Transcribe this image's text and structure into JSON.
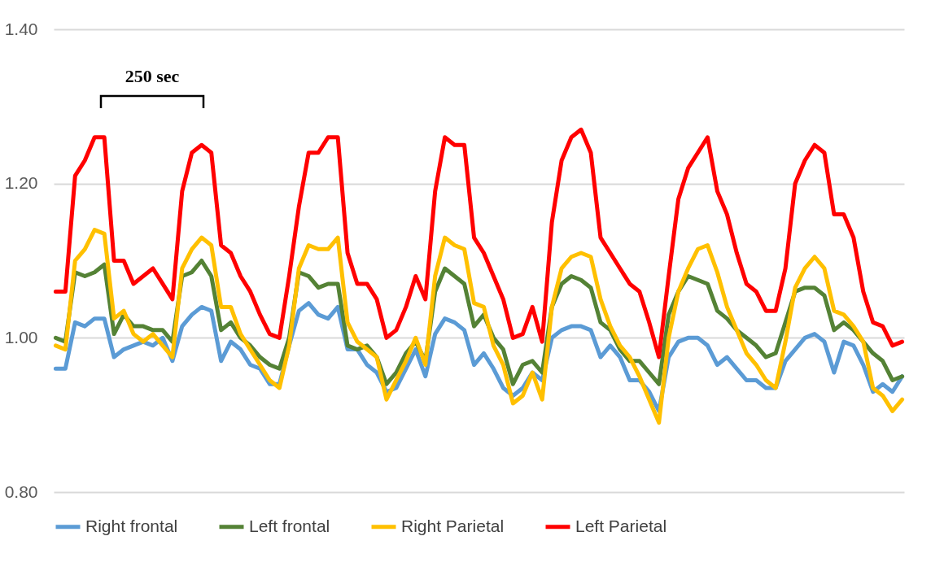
{
  "chart_data": {
    "type": "line",
    "categories": [
      null,
      null,
      null,
      null,
      null,
      null,
      null,
      null,
      null,
      null,
      null,
      null,
      null,
      null,
      null,
      null,
      null,
      null,
      null,
      null,
      null,
      null,
      null,
      null,
      null,
      null,
      null,
      null,
      null,
      null,
      null,
      null,
      null,
      null,
      null,
      null,
      null,
      null,
      null,
      null,
      null,
      null,
      null,
      null,
      null,
      null,
      null,
      null,
      null,
      null,
      null,
      null,
      null,
      null,
      null,
      null,
      null,
      null,
      null,
      null,
      null,
      null,
      null,
      null,
      null,
      null,
      null,
      null,
      null,
      null,
      null,
      null,
      null,
      null,
      null,
      null,
      null,
      null,
      null,
      null,
      null,
      null,
      null,
      null,
      null,
      null,
      null,
      null
    ],
    "series": [
      {
        "name": "Right frontal",
        "color": "#5b9bd5",
        "values": [
          0.96,
          0.96,
          1.02,
          1.015,
          1.025,
          1.025,
          0.975,
          0.985,
          0.99,
          0.995,
          0.99,
          1.0,
          0.97,
          1.015,
          1.03,
          1.04,
          1.035,
          0.97,
          0.995,
          0.985,
          0.965,
          0.96,
          0.94,
          0.94,
          0.99,
          1.035,
          1.045,
          1.03,
          1.025,
          1.04,
          0.985,
          0.985,
          0.965,
          0.955,
          0.93,
          0.935,
          0.96,
          0.985,
          0.95,
          1.005,
          1.025,
          1.02,
          1.01,
          0.965,
          0.98,
          0.96,
          0.935,
          0.925,
          0.935,
          0.955,
          0.945,
          1.0,
          1.01,
          1.015,
          1.015,
          1.01,
          0.975,
          0.99,
          0.975,
          0.945,
          0.945,
          0.93,
          0.905,
          0.975,
          0.995,
          1.0,
          1.0,
          0.99,
          0.965,
          0.975,
          0.96,
          0.945,
          0.945,
          0.935,
          0.935,
          0.97,
          0.985,
          1.0,
          1.005,
          0.995,
          0.955,
          0.995,
          0.99,
          0.965,
          0.93,
          0.94,
          0.93,
          0.95
        ]
      },
      {
        "name": "Left frontal",
        "color": "#548235",
        "values": [
          1.0,
          0.995,
          1.085,
          1.08,
          1.085,
          1.095,
          1.005,
          1.03,
          1.015,
          1.015,
          1.01,
          1.01,
          0.995,
          1.08,
          1.085,
          1.1,
          1.08,
          1.01,
          1.02,
          1.0,
          0.99,
          0.975,
          0.965,
          0.96,
          1.0,
          1.085,
          1.08,
          1.065,
          1.07,
          1.07,
          0.99,
          0.985,
          0.99,
          0.975,
          0.94,
          0.955,
          0.98,
          0.995,
          0.97,
          1.06,
          1.09,
          1.08,
          1.07,
          1.015,
          1.03,
          1.0,
          0.985,
          0.94,
          0.965,
          0.97,
          0.955,
          1.04,
          1.07,
          1.08,
          1.075,
          1.065,
          1.02,
          1.01,
          0.985,
          0.97,
          0.97,
          0.955,
          0.94,
          1.03,
          1.06,
          1.08,
          1.075,
          1.07,
          1.035,
          1.025,
          1.01,
          1.0,
          0.99,
          0.975,
          0.98,
          1.02,
          1.06,
          1.065,
          1.065,
          1.055,
          1.01,
          1.02,
          1.01,
          0.995,
          0.98,
          0.97,
          0.945,
          0.95
        ]
      },
      {
        "name": "Right Parietal",
        "color": "#ffc000",
        "values": [
          0.99,
          0.985,
          1.1,
          1.115,
          1.14,
          1.135,
          1.025,
          1.035,
          1.005,
          0.995,
          1.005,
          0.99,
          0.975,
          1.09,
          1.115,
          1.13,
          1.12,
          1.04,
          1.04,
          1.005,
          0.985,
          0.965,
          0.945,
          0.935,
          0.99,
          1.09,
          1.12,
          1.115,
          1.115,
          1.13,
          1.02,
          0.995,
          0.985,
          0.975,
          0.92,
          0.945,
          0.97,
          1.0,
          0.965,
          1.08,
          1.13,
          1.12,
          1.115,
          1.045,
          1.04,
          0.99,
          0.965,
          0.915,
          0.925,
          0.955,
          0.92,
          1.04,
          1.09,
          1.105,
          1.11,
          1.105,
          1.05,
          1.015,
          0.99,
          0.975,
          0.95,
          0.92,
          0.89,
          1.0,
          1.06,
          1.09,
          1.115,
          1.12,
          1.085,
          1.04,
          1.01,
          0.98,
          0.965,
          0.945,
          0.935,
          0.995,
          1.065,
          1.09,
          1.105,
          1.09,
          1.035,
          1.03,
          1.015,
          0.995,
          0.935,
          0.925,
          0.905,
          0.92
        ]
      },
      {
        "name": "Left Parietal",
        "color": "#ff0000",
        "values": [
          1.06,
          1.06,
          1.21,
          1.23,
          1.26,
          1.26,
          1.1,
          1.1,
          1.07,
          1.08,
          1.09,
          1.07,
          1.05,
          1.19,
          1.24,
          1.25,
          1.24,
          1.12,
          1.11,
          1.08,
          1.06,
          1.03,
          1.005,
          1.0,
          1.08,
          1.17,
          1.24,
          1.24,
          1.26,
          1.26,
          1.11,
          1.07,
          1.07,
          1.05,
          1.0,
          1.01,
          1.04,
          1.08,
          1.05,
          1.19,
          1.26,
          1.25,
          1.25,
          1.13,
          1.11,
          1.08,
          1.05,
          1.0,
          1.005,
          1.04,
          0.995,
          1.15,
          1.23,
          1.26,
          1.27,
          1.24,
          1.13,
          1.11,
          1.09,
          1.07,
          1.06,
          1.02,
          0.975,
          1.08,
          1.18,
          1.22,
          1.24,
          1.26,
          1.19,
          1.16,
          1.11,
          1.07,
          1.06,
          1.035,
          1.035,
          1.09,
          1.2,
          1.23,
          1.25,
          1.24,
          1.16,
          1.16,
          1.13,
          1.06,
          1.02,
          1.015,
          0.99,
          0.995
        ]
      }
    ],
    "ylim": [
      0.8,
      1.4
    ],
    "yticks": [
      {
        "value": 0.8,
        "label": "0.80"
      },
      {
        "value": 1.0,
        "label": "1.00"
      },
      {
        "value": 1.2,
        "label": "1.20"
      },
      {
        "value": 1.4,
        "label": "1.40"
      }
    ],
    "grid": "y",
    "legend": "bottom",
    "annotations": [
      "250 sec"
    ]
  }
}
